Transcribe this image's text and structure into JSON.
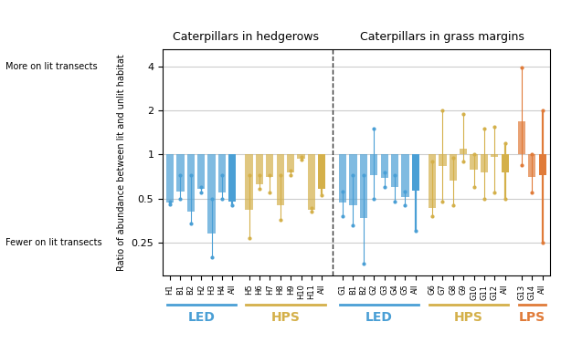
{
  "chart_data": {
    "type": "bar",
    "y_label": "Ratio of abundance between lit and unlit habitat",
    "annotations": [
      {
        "text": "More on lit transects",
        "y": 4
      },
      {
        "text": "Fewer on lit transects",
        "y": 0.25
      }
    ],
    "log": "y",
    "grid": true,
    "baseline": 1,
    "ylim": [
      0.15,
      5.2
    ],
    "yticks": [
      0.25,
      0.5,
      1,
      2,
      4
    ],
    "panels": [
      {
        "title": "Caterpillars in hedgerows",
        "series": [
          {
            "name": "LED",
            "color": "#4a9fd5",
            "categories": [
              "H1",
              "B1",
              "B2",
              "H2",
              "H3",
              "H4",
              "All"
            ],
            "values": [
              0.47,
              0.56,
              0.41,
              0.58,
              0.29,
              0.55,
              0.48
            ],
            "error_low": [
              0.46,
              0.5,
              0.34,
              0.55,
              0.2,
              0.5,
              0.45
            ],
            "error_high": [
              0.48,
              0.72,
              0.72,
              0.6,
              0.5,
              0.72,
              0.52
            ]
          },
          {
            "name": "HPS",
            "color": "#d4b04a",
            "categories": [
              "H5",
              "H6",
              "H7",
              "H8",
              "H9",
              "H10",
              "H11",
              "All"
            ],
            "values": [
              0.42,
              0.63,
              0.7,
              0.45,
              0.75,
              0.94,
              0.42,
              0.58
            ],
            "error_low": [
              0.27,
              0.58,
              0.55,
              0.36,
              0.72,
              0.92,
              0.41,
              0.53
            ],
            "error_high": [
              0.72,
              0.72,
              0.72,
              0.72,
              0.78,
              0.96,
              0.43,
              0.64
            ]
          }
        ]
      },
      {
        "title": "Caterpillars in grass margins",
        "series": [
          {
            "name": "LED",
            "color": "#4a9fd5",
            "categories": [
              "G1",
              "B1",
              "B2",
              "G2",
              "G3",
              "G4",
              "G5",
              "All"
            ],
            "values": [
              0.47,
              0.45,
              0.37,
              0.72,
              0.69,
              0.6,
              0.51,
              0.57
            ],
            "error_low": [
              0.38,
              0.33,
              0.18,
              0.5,
              0.6,
              0.48,
              0.45,
              0.3
            ],
            "error_high": [
              0.56,
              0.72,
              0.72,
              1.5,
              0.75,
              0.72,
              0.56,
              0.92
            ]
          },
          {
            "name": "HPS",
            "color": "#d4b04a",
            "categories": [
              "G6",
              "G7",
              "G8",
              "G9",
              "G10",
              "G11",
              "G12",
              "All"
            ],
            "values": [
              0.43,
              0.84,
              0.66,
              1.1,
              0.79,
              0.75,
              0.96,
              0.76
            ],
            "error_low": [
              0.38,
              0.48,
              0.45,
              0.9,
              0.6,
              0.5,
              0.55,
              0.5
            ],
            "error_high": [
              0.9,
              2.0,
              0.95,
              1.9,
              1.0,
              1.5,
              1.55,
              1.2
            ]
          },
          {
            "name": "LPS",
            "color": "#e07b39",
            "categories": [
              "G13",
              "G14",
              "All"
            ],
            "values": [
              1.68,
              0.7,
              0.72
            ],
            "error_low": [
              0.85,
              0.55,
              0.25
            ],
            "error_high": [
              3.9,
              1.0,
              2.0
            ]
          }
        ]
      }
    ]
  }
}
